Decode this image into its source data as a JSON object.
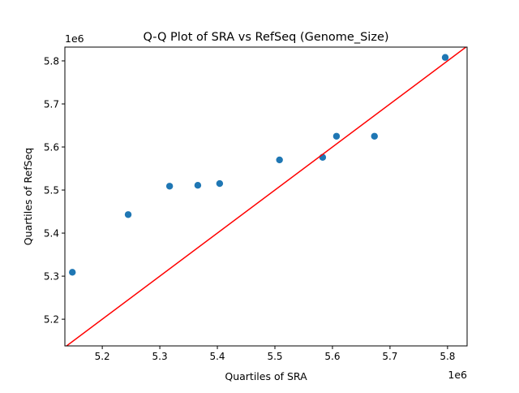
{
  "chart_data": {
    "type": "scatter",
    "title": "Q-Q Plot of SRA vs RefSeq (Genome_Size)",
    "xlabel": "Quartiles of SRA",
    "ylabel": "Quartiles of RefSeq",
    "x_offset_label": "1e6",
    "y_offset_label": "1e6",
    "xlim": [
      5.135,
      5.834
    ],
    "ylim": [
      5.138,
      5.832
    ],
    "xticks": [
      5.2,
      5.3,
      5.4,
      5.5,
      5.6,
      5.7,
      5.8
    ],
    "yticks": [
      5.2,
      5.3,
      5.4,
      5.5,
      5.6,
      5.7,
      5.8
    ],
    "xtick_labels": [
      "5.2",
      "5.3",
      "5.4",
      "5.5",
      "5.6",
      "5.7",
      "5.8"
    ],
    "ytick_labels": [
      "5.2",
      "5.3",
      "5.4",
      "5.5",
      "5.6",
      "5.7",
      "5.8"
    ],
    "grid": false,
    "series": [
      {
        "type": "scatter",
        "color": "#1f77b4",
        "x": [
          5.148,
          5.245,
          5.317,
          5.366,
          5.404,
          5.508,
          5.583,
          5.607,
          5.673,
          5.796
        ],
        "y": [
          5.309,
          5.443,
          5.509,
          5.511,
          5.515,
          5.57,
          5.576,
          5.625,
          5.625,
          5.808
        ]
      },
      {
        "type": "line",
        "color": "#ff0000",
        "x": [
          5.135,
          5.834
        ],
        "y": [
          5.135,
          5.834
        ]
      }
    ]
  }
}
